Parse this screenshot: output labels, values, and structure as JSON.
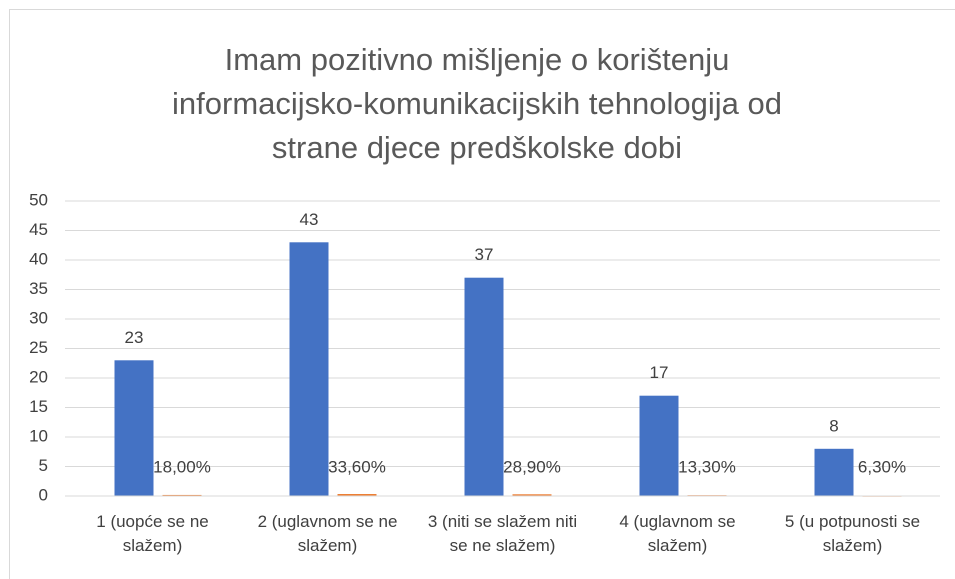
{
  "chart_data": {
    "type": "bar",
    "title": "Imam pozitivno mišljenje o korištenju informacijsko-komunikacijskih tehnologija od strane djece predškolske dobi",
    "categories": [
      "1 (uopće se ne slažem)",
      "2 (uglavnom se ne slažem)",
      "3 (niti se slažem niti se ne slažem)",
      "4 (uglavnom se slažem)",
      "5 (u potpunosti se slažem)"
    ],
    "series": [
      {
        "color": "#4472c4",
        "values": [
          23,
          43,
          37,
          17,
          8
        ]
      },
      {
        "color": "#ed7d31",
        "values": [
          0.18,
          0.336,
          0.289,
          0.133,
          0.063
        ],
        "value_labels": [
          "18,00%",
          "33,60%",
          "28,90%",
          "13,30%",
          "6,30%"
        ]
      }
    ],
    "ylim": [
      0,
      50
    ],
    "yticks": [
      0,
      5,
      10,
      15,
      20,
      25,
      30,
      35,
      40,
      45,
      50
    ],
    "grid": true
  }
}
